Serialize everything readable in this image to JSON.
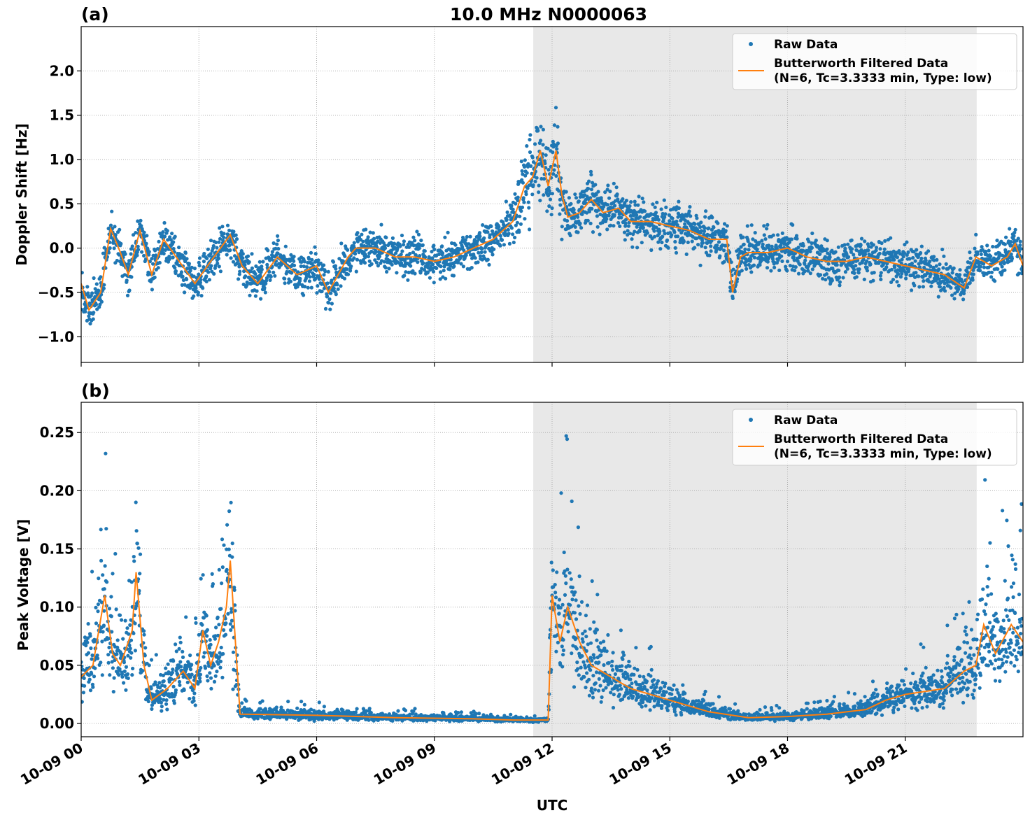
{
  "chart_data": [
    {
      "type": "scatter+line",
      "panel_label": "(a)",
      "title": "10.0 MHz N0000063",
      "xlabel": "",
      "ylabel": "Doppler Shift [Hz]",
      "xlim_hours": [
        0,
        24
      ],
      "ylim": [
        -1.29,
        2.5
      ],
      "x_ticks": [
        "10-09 00",
        "10-09 03",
        "10-09 06",
        "10-09 09",
        "10-09 12",
        "10-09 15",
        "10-09 18",
        "10-09 21"
      ],
      "x_tick_hours": [
        0,
        3,
        6,
        9,
        12,
        15,
        18,
        21
      ],
      "x_tick_labels_shown": false,
      "y_ticks": [
        -1.0,
        -0.5,
        0.0,
        0.5,
        1.0,
        1.5,
        2.0
      ],
      "y_tick_labels": [
        "−1.0",
        "−0.5",
        "0.0",
        "0.5",
        "1.0",
        "1.5",
        "2.0"
      ],
      "grid": true,
      "shaded_interval_hours": [
        11.52,
        22.82
      ],
      "shade_color": "#e8e8e8",
      "legend": {
        "placement": "top-right",
        "entries": [
          "Raw Data",
          "Butterworth Filtered Data",
          "(N=6, Tc=3.3333 min, Type: low)"
        ]
      },
      "series": [
        {
          "name": "Raw Data",
          "kind": "scatter",
          "color": "#1f77b4",
          "envelope_half_width_hz": [
            [
              0,
              0.3
            ],
            [
              10.8,
              0.35
            ],
            [
              11.2,
              0.6
            ],
            [
              12.2,
              0.65
            ],
            [
              12.4,
              0.4
            ],
            [
              24,
              0.3
            ]
          ]
        },
        {
          "name": "Butterworth Filtered Data",
          "kind": "line",
          "color": "#ff7f0e",
          "points_hours_hz": [
            [
              0,
              -0.4
            ],
            [
              0.2,
              -0.7
            ],
            [
              0.5,
              -0.5
            ],
            [
              0.75,
              0.22
            ],
            [
              1.0,
              -0.05
            ],
            [
              1.2,
              -0.3
            ],
            [
              1.5,
              0.2
            ],
            [
              1.8,
              -0.3
            ],
            [
              2.1,
              0.1
            ],
            [
              2.5,
              -0.15
            ],
            [
              2.9,
              -0.4
            ],
            [
              3.3,
              -0.15
            ],
            [
              3.8,
              0.15
            ],
            [
              4.1,
              -0.2
            ],
            [
              4.5,
              -0.4
            ],
            [
              5.0,
              -0.1
            ],
            [
              5.5,
              -0.3
            ],
            [
              6.0,
              -0.2
            ],
            [
              6.3,
              -0.5
            ],
            [
              6.8,
              -0.1
            ],
            [
              7.0,
              0.0
            ],
            [
              7.5,
              0.0
            ],
            [
              8.0,
              -0.1
            ],
            [
              8.5,
              -0.1
            ],
            [
              9.0,
              -0.15
            ],
            [
              9.5,
              -0.1
            ],
            [
              10.0,
              0.0
            ],
            [
              10.5,
              0.1
            ],
            [
              11.0,
              0.3
            ],
            [
              11.3,
              0.7
            ],
            [
              11.5,
              0.8
            ],
            [
              11.7,
              1.1
            ],
            [
              11.9,
              0.7
            ],
            [
              12.1,
              1.1
            ],
            [
              12.25,
              0.6
            ],
            [
              12.4,
              0.35
            ],
            [
              12.7,
              0.4
            ],
            [
              13.0,
              0.55
            ],
            [
              13.3,
              0.4
            ],
            [
              13.7,
              0.45
            ],
            [
              14.0,
              0.3
            ],
            [
              14.5,
              0.3
            ],
            [
              15.0,
              0.25
            ],
            [
              15.5,
              0.2
            ],
            [
              16.0,
              0.1
            ],
            [
              16.45,
              0.1
            ],
            [
              16.6,
              -0.5
            ],
            [
              16.8,
              -0.1
            ],
            [
              17.0,
              -0.05
            ],
            [
              17.5,
              -0.05
            ],
            [
              18.0,
              0.0
            ],
            [
              18.5,
              -0.1
            ],
            [
              19.0,
              -0.15
            ],
            [
              19.5,
              -0.15
            ],
            [
              20.0,
              -0.1
            ],
            [
              20.5,
              -0.15
            ],
            [
              21.0,
              -0.2
            ],
            [
              21.5,
              -0.25
            ],
            [
              22.0,
              -0.3
            ],
            [
              22.5,
              -0.45
            ],
            [
              22.8,
              -0.1
            ],
            [
              23.2,
              -0.2
            ],
            [
              23.6,
              -0.1
            ],
            [
              23.8,
              0.05
            ],
            [
              24.0,
              -0.2
            ]
          ]
        }
      ]
    },
    {
      "type": "scatter+line",
      "panel_label": "(b)",
      "title": "",
      "xlabel": "UTC",
      "ylabel": "Peak Voltage [V]",
      "xlim_hours": [
        0,
        24
      ],
      "ylim": [
        -0.0114,
        0.276
      ],
      "x_ticks": [
        "10-09 00",
        "10-09 03",
        "10-09 06",
        "10-09 09",
        "10-09 12",
        "10-09 15",
        "10-09 18",
        "10-09 21"
      ],
      "x_tick_hours": [
        0,
        3,
        6,
        9,
        12,
        15,
        18,
        21
      ],
      "x_tick_labels_shown": true,
      "y_ticks": [
        0.0,
        0.05,
        0.1,
        0.15,
        0.2,
        0.25
      ],
      "y_tick_labels": [
        "0.00",
        "0.05",
        "0.10",
        "0.15",
        "0.20",
        "0.25"
      ],
      "grid": true,
      "shaded_interval_hours": [
        11.52,
        22.82
      ],
      "shade_color": "#e8e8e8",
      "legend": {
        "placement": "top-right",
        "entries": [
          "Raw Data",
          "Butterworth Filtered Data",
          "(N=6, Tc=3.3333 min, Type: low)"
        ]
      },
      "series": [
        {
          "name": "Raw Data",
          "kind": "scatter",
          "color": "#1f77b4",
          "envelope_ratio_to_filtered": [
            0.25,
            2.1
          ]
        },
        {
          "name": "Butterworth Filtered Data",
          "kind": "line",
          "color": "#ff7f0e",
          "points_hours_v": [
            [
              0,
              0.04
            ],
            [
              0.3,
              0.05
            ],
            [
              0.5,
              0.09
            ],
            [
              0.6,
              0.11
            ],
            [
              0.8,
              0.06
            ],
            [
              1.0,
              0.05
            ],
            [
              1.3,
              0.08
            ],
            [
              1.4,
              0.13
            ],
            [
              1.6,
              0.05
            ],
            [
              1.8,
              0.02
            ],
            [
              2.2,
              0.03
            ],
            [
              2.6,
              0.045
            ],
            [
              2.9,
              0.03
            ],
            [
              3.1,
              0.08
            ],
            [
              3.3,
              0.05
            ],
            [
              3.5,
              0.07
            ],
            [
              3.7,
              0.1
            ],
            [
              3.8,
              0.14
            ],
            [
              3.95,
              0.06
            ],
            [
              4.05,
              0.008
            ],
            [
              6.0,
              0.007
            ],
            [
              8.0,
              0.005
            ],
            [
              10.0,
              0.004
            ],
            [
              11.0,
              0.003
            ],
            [
              11.9,
              0.003
            ],
            [
              12.0,
              0.11
            ],
            [
              12.2,
              0.07
            ],
            [
              12.4,
              0.1
            ],
            [
              12.7,
              0.07
            ],
            [
              13.0,
              0.05
            ],
            [
              13.5,
              0.04
            ],
            [
              14.0,
              0.03
            ],
            [
              15.0,
              0.02
            ],
            [
              16.0,
              0.01
            ],
            [
              17.0,
              0.005
            ],
            [
              18.0,
              0.006
            ],
            [
              19.0,
              0.008
            ],
            [
              20.0,
              0.012
            ],
            [
              20.5,
              0.02
            ],
            [
              21.0,
              0.025
            ],
            [
              22.0,
              0.03
            ],
            [
              22.5,
              0.045
            ],
            [
              22.8,
              0.05
            ],
            [
              23.0,
              0.085
            ],
            [
              23.3,
              0.06
            ],
            [
              23.7,
              0.085
            ],
            [
              24.0,
              0.07
            ]
          ]
        }
      ]
    }
  ]
}
